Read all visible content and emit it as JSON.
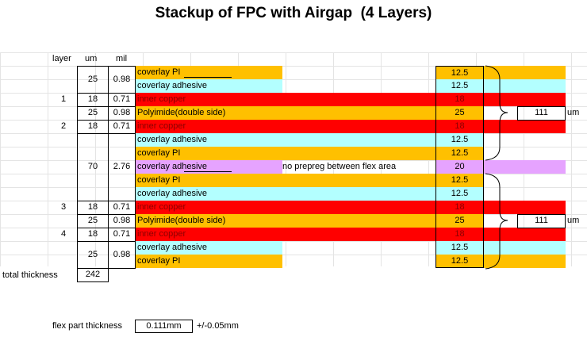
{
  "title": "Stackup of FPC with Airgap  (4 Layers)",
  "headers": {
    "layer": "layer",
    "um": "um",
    "mil": "mil"
  },
  "colors": {
    "coverlay_pi": "#ffc000",
    "coverlay_adhesive": "#b3ffff",
    "copper": "#ff0000",
    "polyimide": "#ffc000",
    "airgap_adhesive": "#e6a3ff"
  },
  "rows": [
    {
      "text": "coverlay PI",
      "value": "12.5"
    },
    {
      "text": "coverlay adhesive",
      "value": "12.5"
    },
    {
      "text": "inner copper",
      "value": "18"
    },
    {
      "text": "Polyimide(double side)",
      "value": "25"
    },
    {
      "text": "inner copper",
      "value": "18"
    },
    {
      "text": "coverlay adhesive",
      "value": "12.5"
    },
    {
      "text": "coverlay PI",
      "value": "12.5"
    },
    {
      "text": "coverlay adhesive",
      "value": "20"
    },
    {
      "text": "coverlay PI",
      "value": "12.5"
    },
    {
      "text": "coverlay adhesive",
      "value": "12.5"
    },
    {
      "text": "inner copper",
      "value": "18"
    },
    {
      "text": "Polyimide(double side)",
      "value": "25"
    },
    {
      "text": "inner copper",
      "value": "18"
    },
    {
      "text": "coverlay adhesive",
      "value": "12.5"
    },
    {
      "text": "coverlay PI",
      "value": "12.5"
    }
  ],
  "groups": [
    {
      "layer": "",
      "um": "25",
      "mil": "0.98"
    },
    {
      "layer": "1",
      "um": "18",
      "mil": "0.71"
    },
    {
      "layer": "",
      "um": "25",
      "mil": "0.98"
    },
    {
      "layer": "2",
      "um": "18",
      "mil": "0.71"
    },
    {
      "layer": "",
      "um": "70",
      "mil": "2.76"
    },
    {
      "layer": "3",
      "um": "18",
      "mil": "0.71"
    },
    {
      "layer": "",
      "um": "25",
      "mil": "0.98"
    },
    {
      "layer": "4",
      "um": "18",
      "mil": "0.71"
    },
    {
      "layer": "",
      "um": "25",
      "mil": "0.98"
    }
  ],
  "note": "no prepreg between flex area",
  "totals": [
    {
      "value": "111",
      "unit": "um"
    },
    {
      "value": "111",
      "unit": "um"
    }
  ],
  "total_thickness": {
    "label": "total thickness",
    "value": "242"
  },
  "flex": {
    "label": "flex part thickness",
    "value": "0.111mm",
    "tolerance": "+/-0.05mm"
  }
}
